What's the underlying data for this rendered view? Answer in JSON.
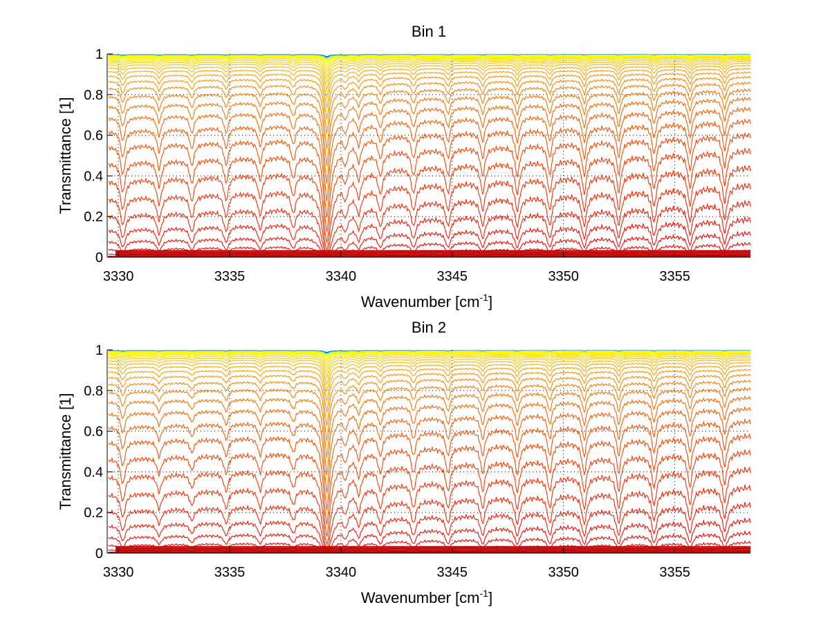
{
  "chart_data": [
    {
      "type": "line",
      "title": "Bin 1",
      "xlabel": "Wavenumber [cm",
      "xlabel_sup": "-1",
      "xlabel_end": "]",
      "ylabel": "Transmittance [1]",
      "xlim": [
        3329.5,
        3358.4
      ],
      "ylim": [
        0,
        1
      ],
      "xticks": [
        3330,
        3335,
        3340,
        3345,
        3350,
        3355
      ],
      "xtick_labels": [
        "3330",
        "3335",
        "3340",
        "3345",
        "3350",
        "3355"
      ],
      "yticks": [
        0,
        0.2,
        0.4,
        0.6,
        0.8,
        1
      ],
      "ytick_labels": [
        "0",
        "0.2",
        "0.4",
        "0.6",
        "0.8",
        "1"
      ],
      "grid": "dotted",
      "series_count": 40,
      "colormap": "jet (red = low transmittance, yellow/blue = high)",
      "absorption_lines_cm-1": [
        3330.2,
        3331.83,
        3333.3,
        3334.84,
        3336.37,
        3337.86,
        3339.35,
        3340.2,
        3340.8,
        3341.77,
        3343.26,
        3344.81,
        3346.37,
        3347.92,
        3349.38,
        3350.93,
        3352.48,
        3354.07,
        3355.68,
        3357.24
      ],
      "line_strengths": [
        0.55,
        0.45,
        0.4,
        0.4,
        0.38,
        0.35,
        2.2,
        0.3,
        0.35,
        0.35,
        0.38,
        0.4,
        0.42,
        0.45,
        0.45,
        0.48,
        0.48,
        0.45,
        0.45,
        0.42
      ],
      "sample_baseline_levels": [
        0.9,
        0.8,
        0.67,
        0.55,
        0.43,
        0.35,
        0.25,
        0.17,
        0.13,
        0.1,
        0.07,
        0.05,
        0.03,
        0.02,
        0.01,
        0
      ]
    },
    {
      "type": "line",
      "title": "Bin 2",
      "xlabel": "Wavenumber [cm",
      "xlabel_sup": "-1",
      "xlabel_end": "]",
      "ylabel": "Transmittance [1]",
      "xlim": [
        3329.5,
        3358.4
      ],
      "ylim": [
        0,
        1
      ],
      "xticks": [
        3330,
        3335,
        3340,
        3345,
        3350,
        3355
      ],
      "xtick_labels": [
        "3330",
        "3335",
        "3340",
        "3345",
        "3350",
        "3355"
      ],
      "yticks": [
        0,
        0.2,
        0.4,
        0.6,
        0.8,
        1
      ],
      "ytick_labels": [
        "0",
        "0.2",
        "0.4",
        "0.6",
        "0.8",
        "1"
      ],
      "grid": "dotted",
      "series_count": 40,
      "colormap": "jet (red = low transmittance, yellow/blue = high)",
      "absorption_lines_cm-1": [
        3330.2,
        3331.83,
        3333.3,
        3334.84,
        3336.37,
        3337.86,
        3339.35,
        3340.2,
        3340.8,
        3341.77,
        3343.26,
        3344.81,
        3346.37,
        3347.92,
        3349.38,
        3350.93,
        3352.48,
        3354.07,
        3355.68,
        3357.24
      ],
      "line_strengths": [
        0.45,
        0.28,
        0.22,
        0.3,
        0.3,
        0.25,
        2.0,
        0.3,
        0.35,
        0.35,
        0.38,
        0.4,
        0.42,
        0.45,
        0.45,
        0.48,
        0.48,
        0.45,
        0.45,
        0.42
      ],
      "sample_baseline_levels": [
        0.9,
        0.77,
        0.65,
        0.54,
        0.42,
        0.31,
        0.23,
        0.16,
        0.12,
        0.09,
        0.07,
        0.05,
        0.03,
        0.02,
        0.01,
        0
      ]
    }
  ]
}
